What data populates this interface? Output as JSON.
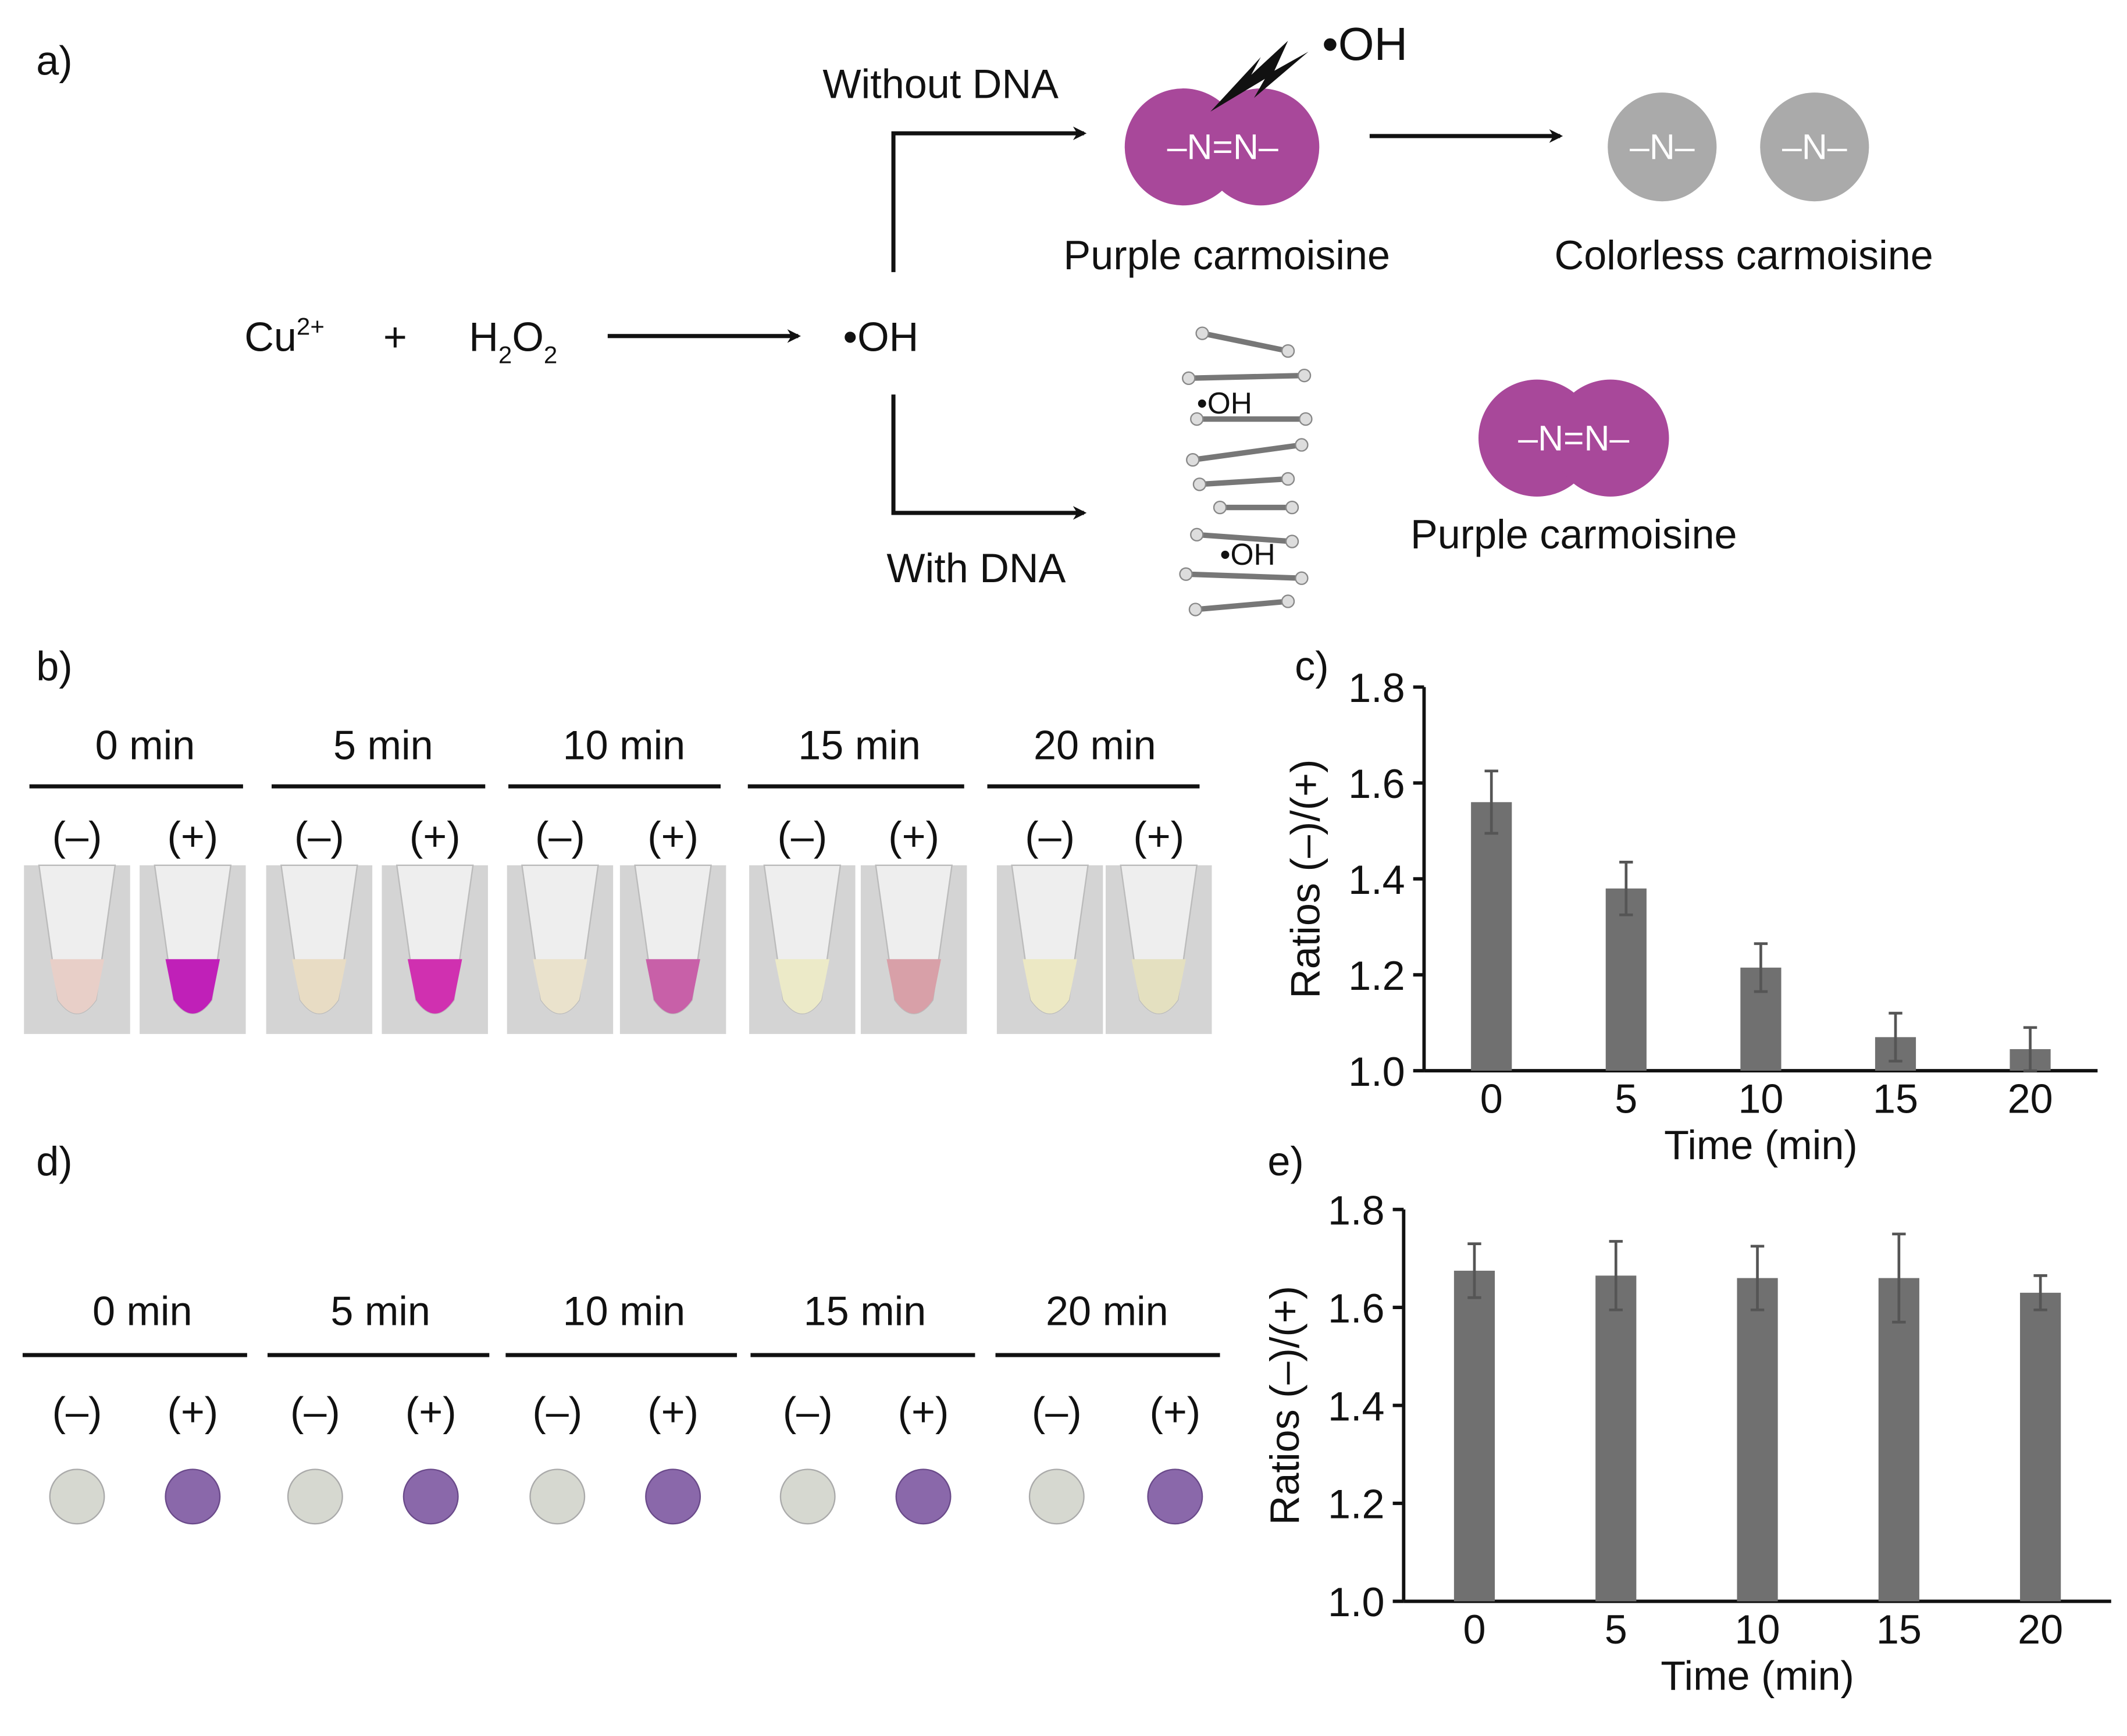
{
  "panel_labels": [
    "a)",
    "b)",
    "c)",
    "d)",
    "e)"
  ],
  "scheme": {
    "cu": "Cu",
    "cu_charge": "2+",
    "plus": "+",
    "h2o2": [
      "H",
      "2",
      "O",
      "2"
    ],
    "radical": "•OH",
    "without_dna": "Without DNA",
    "with_dna": "With DNA",
    "attack_radical": "•OH",
    "azo": "–N=N–",
    "purple": "Purple carmoisine",
    "fragment": [
      "–N–",
      "–N–"
    ],
    "colorless": "Colorless carmoisine",
    "dna_radicals": [
      "•OH",
      "•OH"
    ],
    "azo_protected": "–N=N–",
    "purple_protected": "Purple carmoisine"
  },
  "panel_b": {
    "groups": [
      {
        "time": "0 min",
        "signs": [
          "(–)",
          "(+)"
        ]
      },
      {
        "time": "5 min",
        "signs": [
          "(–)",
          "(+)"
        ]
      },
      {
        "time": "10 min",
        "signs": [
          "(–)",
          "(+)"
        ]
      },
      {
        "time": "15 min",
        "signs": [
          "(–)",
          "(+)"
        ]
      },
      {
        "time": "20 min",
        "signs": [
          "(–)",
          "(+)"
        ]
      }
    ]
  },
  "panel_d": {
    "groups": [
      {
        "time": "0 min",
        "signs": [
          "(–)",
          "(+)"
        ]
      },
      {
        "time": "5 min",
        "signs": [
          "(–)",
          "(+)"
        ]
      },
      {
        "time": "10 min",
        "signs": [
          "(–)",
          "(+)"
        ]
      },
      {
        "time": "15 min",
        "signs": [
          "(–)",
          "(+)"
        ]
      },
      {
        "time": "20 min",
        "signs": [
          "(–)",
          "(+)"
        ]
      }
    ]
  },
  "chart_data": [
    {
      "type": "bar",
      "xlabel": "Time (min)",
      "ylabel": "Ratios (–)/(+)",
      "categories": [
        "0",
        "5",
        "10",
        "15",
        "20"
      ],
      "values": [
        1.56,
        1.38,
        1.215,
        1.07,
        1.045
      ],
      "errors": [
        0.065,
        0.055,
        0.05,
        0.05,
        0.045
      ],
      "color": "#707070",
      "ylim": [
        1.0,
        1.8
      ],
      "yticks": [
        {
          "value": 1.0,
          "label": "1.0"
        },
        1.2,
        1.4,
        1.6,
        1.8
      ]
    },
    {
      "type": "bar",
      "xlabel": "Time (min)",
      "ylabel": "Ratios (–)/(+)",
      "categories": [
        "0",
        "5",
        "10",
        "15",
        "20"
      ],
      "values": [
        1.675,
        1.665,
        1.66,
        1.66,
        1.63
      ],
      "errors": [
        0.055,
        0.07,
        0.065,
        0.09,
        0.035
      ],
      "color": "#707070",
      "ylim": [
        1.0,
        1.8
      ],
      "yticks": [
        {
          "value": 1.0,
          "label": "1.0"
        },
        1.2,
        1.4,
        1.6,
        1.8
      ]
    }
  ]
}
